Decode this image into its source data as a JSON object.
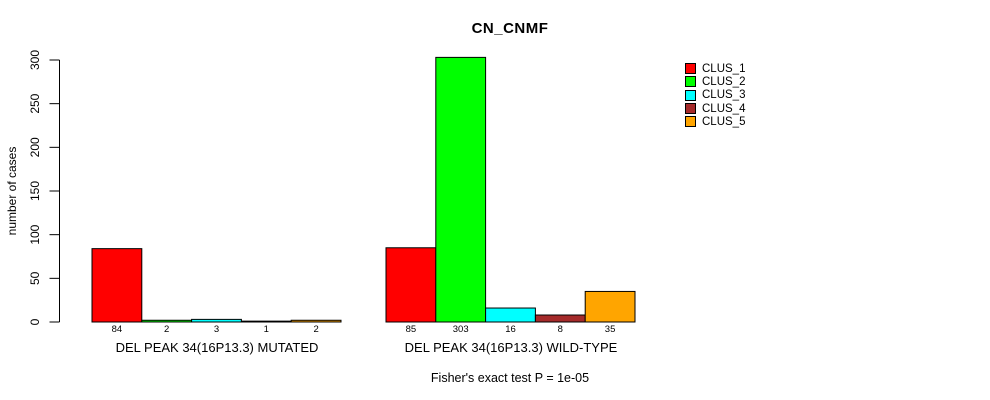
{
  "chart_data": {
    "type": "bar",
    "title": "CN_CNMF",
    "ylabel": "number of cases",
    "xlabel": "",
    "ylim": [
      0,
      300
    ],
    "yticks": [
      0,
      50,
      100,
      150,
      200,
      250,
      300
    ],
    "grid": false,
    "legend_position": "right",
    "series_names": [
      "CLUS_1",
      "CLUS_2",
      "CLUS_3",
      "CLUS_4",
      "CLUS_5"
    ],
    "series_colors": [
      "#FF0000",
      "#00FF00",
      "#00FFFF",
      "#A52A2A",
      "#FFA500"
    ],
    "groups": [
      {
        "label": "DEL PEAK 34(16P13.3) MUTATED",
        "values": [
          84,
          2,
          3,
          1,
          2
        ]
      },
      {
        "label": "DEL PEAK 34(16P13.3) WILD-TYPE",
        "values": [
          85,
          303,
          16,
          8,
          35
        ]
      }
    ],
    "bar_value_labels_shown": true,
    "annotation": "Fisher's exact test P = 1e-05",
    "background_color": "#FFFFFF",
    "axis_color": "#000000"
  }
}
